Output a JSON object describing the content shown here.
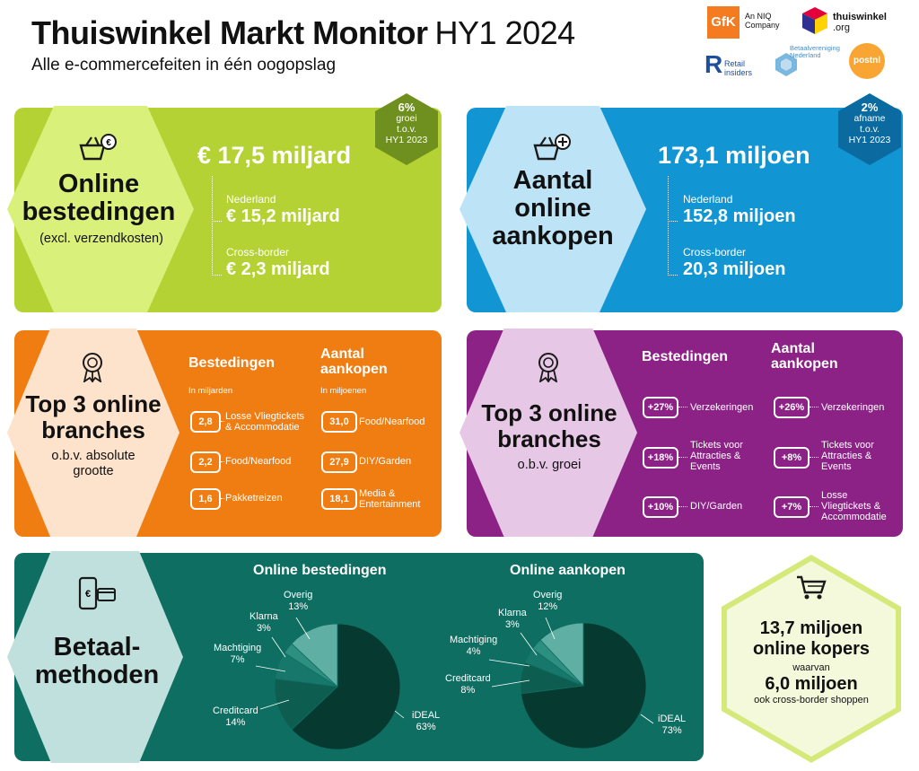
{
  "header": {
    "title": "Thuiswinkel Markt Monitor",
    "period": "HY1 2024",
    "subtitle": "Alle e-commercefeiten in één oogopslag"
  },
  "logos": {
    "gfk": "GfK",
    "gfk_note": "An NIQ Company",
    "thuiswinkel": "thuiswinkel",
    "thuiswinkel_suffix": ".org",
    "retail_insiders": "Retail insiders",
    "betaalvereniging": "Betaalvereniging Nederland",
    "postnl": "postnl"
  },
  "spend": {
    "title_line1": "Online",
    "title_line2": "bestedingen",
    "note": "(excl. verzendkosten)",
    "total": "€ 17,5 miljard",
    "nl_label": "Nederland",
    "nl_value": "€ 15,2 miljard",
    "cb_label": "Cross-border",
    "cb_value": "€ 2,3 miljard",
    "badge": {
      "pct": "6%",
      "line1": "groei",
      "line2": "t.o.v.",
      "line3": "HY1 2023"
    }
  },
  "purchases": {
    "title_line1": "Aantal",
    "title_line2": "online",
    "title_line3": "aankopen",
    "total": "173,1 miljoen",
    "nl_label": "Nederland",
    "nl_value": "152,8 miljoen",
    "cb_label": "Cross-border",
    "cb_value": "20,3 miljoen",
    "badge": {
      "pct": "2%",
      "line1": "afname",
      "line2": "t.o.v.",
      "line3": "HY1 2023"
    }
  },
  "top_size": {
    "title_line1": "Top 3 online",
    "title_line2": "branches",
    "sub_line1": "o.b.v. absolute",
    "sub_line2": "grootte",
    "col1_title": "Bestedingen",
    "col1_sub": "In miljarden",
    "col2_title_line1": "Aantal",
    "col2_title_line2": "aankopen",
    "col2_sub": "In miljoenen",
    "spend": [
      {
        "value": "2,8",
        "l1": "Losse Vliegtickets",
        "l2": "& Accommodatie"
      },
      {
        "value": "2,2",
        "l1": "Food/Nearfood",
        "l2": ""
      },
      {
        "value": "1,6",
        "l1": "Pakketreizen",
        "l2": ""
      }
    ],
    "purchases": [
      {
        "value": "31,0",
        "l1": "Food/Nearfood",
        "l2": ""
      },
      {
        "value": "27,9",
        "l1": "DIY/Garden",
        "l2": ""
      },
      {
        "value": "18,1",
        "l1": "Media &",
        "l2": "Entertainment"
      }
    ]
  },
  "top_growth": {
    "title_line1": "Top 3 online",
    "title_line2": "branches",
    "sub": "o.b.v. groei",
    "col1_title": "Bestedingen",
    "col2_title_line1": "Aantal",
    "col2_title_line2": "aankopen",
    "spend": [
      {
        "value": "+27%",
        "l1": "Verzekeringen",
        "l2": "",
        "l3": ""
      },
      {
        "value": "+18%",
        "l1": "Tickets voor",
        "l2": "Attracties &",
        "l3": "Events"
      },
      {
        "value": "+10%",
        "l1": "DIY/Garden",
        "l2": "",
        "l3": ""
      }
    ],
    "purchases": [
      {
        "value": "+26%",
        "l1": "Verzekeringen",
        "l2": "",
        "l3": ""
      },
      {
        "value": "+8%",
        "l1": "Tickets voor",
        "l2": "Attracties &",
        "l3": "Events"
      },
      {
        "value": "+7%",
        "l1": "Losse",
        "l2": "Vliegtickets &",
        "l3": "Accommodatie"
      }
    ]
  },
  "payments": {
    "title_line1": "Betaal-",
    "title_line2": "methoden"
  },
  "chart_data": [
    {
      "type": "pie",
      "title": "Online bestedingen",
      "categories": [
        "iDEAL",
        "Creditcard",
        "Machtiging",
        "Klarna",
        "Overig"
      ],
      "values": [
        63,
        14,
        7,
        3,
        13
      ],
      "labels": [
        "63%",
        "14%",
        "7%",
        "3%",
        "13%"
      ],
      "colors": [
        "#063a31",
        "#0d5e51",
        "#17776a",
        "#2c8f80",
        "#5fafa4"
      ]
    },
    {
      "type": "pie",
      "title": "Online aankopen",
      "categories": [
        "iDEAL",
        "Creditcard",
        "Machtiging",
        "Klarna",
        "Overig"
      ],
      "values": [
        73,
        8,
        4,
        3,
        12
      ],
      "labels": [
        "73%",
        "8%",
        "4%",
        "3%",
        "12%"
      ],
      "colors": [
        "#063a31",
        "#0d5e51",
        "#17776a",
        "#2c8f80",
        "#5fafa4"
      ]
    }
  ],
  "buyers": {
    "line1": "13,7 miljoen",
    "line2": "online kopers",
    "line3": "waarvan",
    "line4": "6,0 miljoen",
    "line5": "ook cross-border shoppen"
  },
  "colors": {
    "green": "#b4d233",
    "blue": "#1295d3",
    "orange": "#f07d12",
    "purple": "#8c2286",
    "teal": "#0e6e61"
  }
}
